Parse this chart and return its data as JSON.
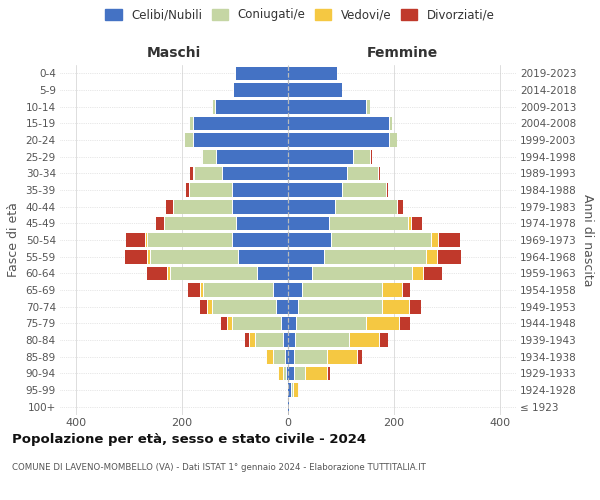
{
  "age_groups": [
    "100+",
    "95-99",
    "90-94",
    "85-89",
    "80-84",
    "75-79",
    "70-74",
    "65-69",
    "60-64",
    "55-59",
    "50-54",
    "45-49",
    "40-44",
    "35-39",
    "30-34",
    "25-29",
    "20-24",
    "15-19",
    "10-14",
    "5-9",
    "0-4"
  ],
  "birth_years": [
    "≤ 1923",
    "1924-1928",
    "1929-1933",
    "1934-1938",
    "1939-1943",
    "1944-1948",
    "1949-1953",
    "1954-1958",
    "1959-1963",
    "1964-1968",
    "1969-1973",
    "1974-1978",
    "1979-1983",
    "1984-1988",
    "1989-1993",
    "1994-1998",
    "1999-2003",
    "2004-2008",
    "2009-2013",
    "2014-2018",
    "2019-2023"
  ],
  "colors": {
    "celibi": "#4472c4",
    "coniugati": "#c5d6a4",
    "vedovi": "#f5c842",
    "divorziati": "#c0392b"
  },
  "maschi": {
    "celibi": [
      1,
      1,
      3,
      6,
      10,
      14,
      22,
      28,
      58,
      95,
      105,
      98,
      105,
      105,
      125,
      135,
      180,
      180,
      138,
      103,
      100
    ],
    "coniugati": [
      0,
      1,
      6,
      22,
      52,
      92,
      122,
      132,
      165,
      165,
      160,
      135,
      112,
      82,
      52,
      27,
      16,
      6,
      6,
      0,
      0
    ],
    "vedovi": [
      0,
      2,
      9,
      13,
      11,
      9,
      9,
      6,
      6,
      6,
      5,
      0,
      0,
      0,
      3,
      3,
      0,
      0,
      0,
      0,
      0
    ],
    "divorziati": [
      0,
      0,
      0,
      0,
      9,
      11,
      13,
      22,
      36,
      42,
      36,
      16,
      13,
      6,
      5,
      0,
      0,
      0,
      0,
      0,
      0
    ]
  },
  "femmine": {
    "celibi": [
      2,
      5,
      11,
      11,
      13,
      16,
      19,
      26,
      46,
      68,
      82,
      78,
      88,
      102,
      112,
      122,
      190,
      190,
      148,
      102,
      92
    ],
    "coniugati": [
      0,
      5,
      21,
      62,
      102,
      132,
      158,
      152,
      188,
      192,
      188,
      148,
      118,
      82,
      57,
      32,
      16,
      6,
      6,
      0,
      0
    ],
    "vedovi": [
      2,
      9,
      42,
      58,
      57,
      62,
      52,
      37,
      21,
      21,
      13,
      6,
      0,
      0,
      0,
      0,
      0,
      0,
      0,
      0,
      0
    ],
    "divorziati": [
      0,
      2,
      5,
      8,
      16,
      21,
      21,
      16,
      36,
      46,
      41,
      21,
      11,
      5,
      5,
      5,
      0,
      0,
      0,
      0,
      0
    ]
  },
  "title": "Popolazione per età, sesso e stato civile - 2024",
  "subtitle": "COMUNE DI LAVENO-MOMBELLO (VA) - Dati ISTAT 1° gennaio 2024 - Elaborazione TUTTITALIA.IT",
  "ylabel": "Fasce di età",
  "right_ylabel": "Anni di nascita",
  "label_maschi": "Maschi",
  "label_femmine": "Femmine",
  "xlim": 430,
  "legend_labels": [
    "Celibi/Nubili",
    "Coniugati/e",
    "Vedovi/e",
    "Divorziati/e"
  ],
  "bg_color": "#ffffff",
  "grid_color": "#d0d0d0"
}
